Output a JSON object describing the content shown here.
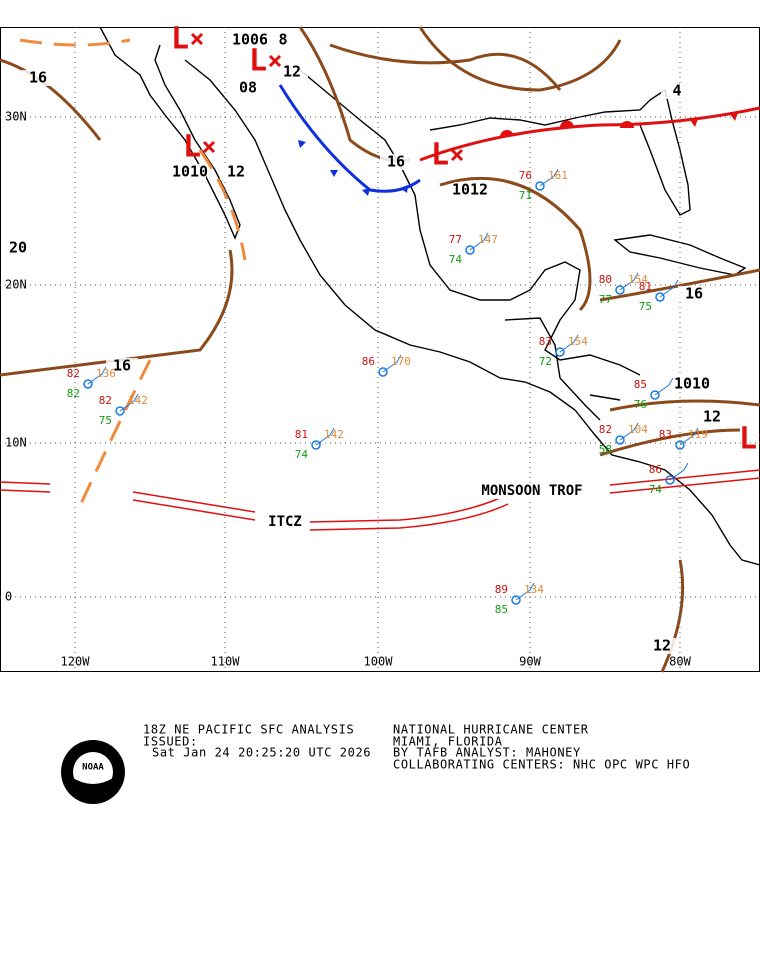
{
  "map": {
    "lat_labels": [
      "30N",
      "20N",
      "10N",
      "0"
    ],
    "lon_labels": [
      "120W",
      "110W",
      "100W",
      "90W",
      "80W"
    ],
    "isobar_labels": [
      "16",
      "20",
      "16",
      "1006",
      "08",
      "12",
      "1010",
      "12",
      "16",
      "1012",
      "16",
      "1010",
      "12",
      "8",
      "4",
      "12"
    ],
    "lows": [
      "L",
      "L",
      "L",
      "L",
      "L"
    ],
    "feature_labels": [
      "ITCZ",
      "MONSOON TROF"
    ],
    "stations": [
      {
        "t": 82,
        "d": 82,
        "p": 136
      },
      {
        "t": 82,
        "d": 75,
        "p": 142
      },
      {
        "t": 81,
        "d": 74,
        "p": 142
      },
      {
        "t": 86,
        "p": 170
      },
      {
        "t": 77,
        "d": 74,
        "p": 147
      },
      {
        "t": 76,
        "d": 71,
        "p": 161
      },
      {
        "t": 80,
        "d": 77,
        "p": 154
      },
      {
        "t": 83,
        "d": 72,
        "p": 154
      },
      {
        "t": 81,
        "d": 75
      },
      {
        "t": 85,
        "d": 76
      },
      {
        "t": 82,
        "d": 58,
        "p": 104
      },
      {
        "t": 83,
        "p": 119
      },
      {
        "t": 86,
        "d": 74
      },
      {
        "t": 89,
        "d": 85,
        "p": 134
      }
    ]
  },
  "footer": {
    "title": "18Z NE PACIFIC SFC ANALYSIS",
    "issued": "ISSUED:",
    "time": "Sat Jan 24 20:25:20 UTC 2026",
    "center": "NATIONAL HURRICANE CENTER",
    "location": "MIAMI, FLORIDA",
    "analyst": "BY TAFB ANALYST: MAHONEY",
    "collab": "COLLABORATING CENTERS: NHC OPC WPC HFO"
  },
  "logo": "NOAA"
}
